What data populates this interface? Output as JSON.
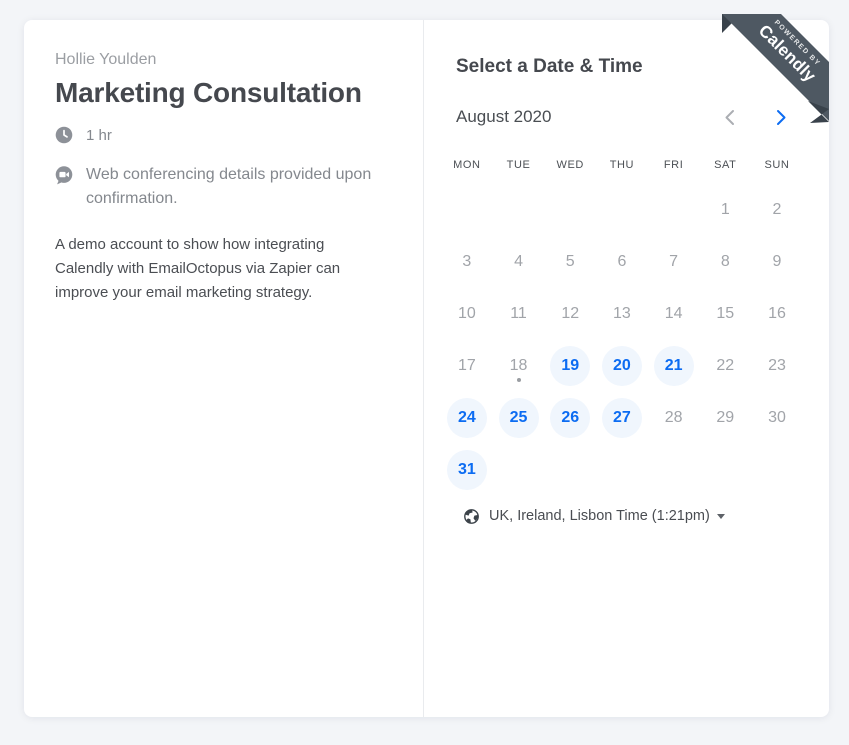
{
  "profile": {
    "host_name": "Hollie Youlden",
    "event_title": "Marketing Consultation",
    "duration": "1 hr",
    "conferencing_note": "Web conferencing details provided upon confirmation.",
    "description": "A demo account to show how integrating Calendly with EmailOctopus via Zapier can improve your email marketing strategy."
  },
  "ribbon": {
    "powered_by": "POWERED BY",
    "brand": "Calendly"
  },
  "calendar": {
    "heading": "Select a Date & Time",
    "month_label": "August 2020",
    "prev_month_icon": "chevron-left",
    "next_month_icon": "chevron-right",
    "day_headers": [
      "MON",
      "TUE",
      "WED",
      "THU",
      "FRI",
      "SAT",
      "SUN"
    ],
    "days_in_month": 31,
    "first_day_column": 6,
    "available_days": [
      19,
      20,
      21,
      24,
      25,
      26,
      27,
      31
    ],
    "today_day": 18,
    "timezone_label": "UK, Ireland, Lisbon Time (1:21pm)"
  },
  "colors": {
    "accent_blue": "#0c6cf2",
    "available_day_bg": "#f0f6fd",
    "disabled_day_text": "#a1a4a9",
    "ribbon_bg": "#4e5862",
    "ribbon_fold": "#39424b",
    "page_bg": "#f3f5f8",
    "card_bg": "#ffffff",
    "dark_text": "#45484e",
    "muted_text": "#84888e"
  }
}
